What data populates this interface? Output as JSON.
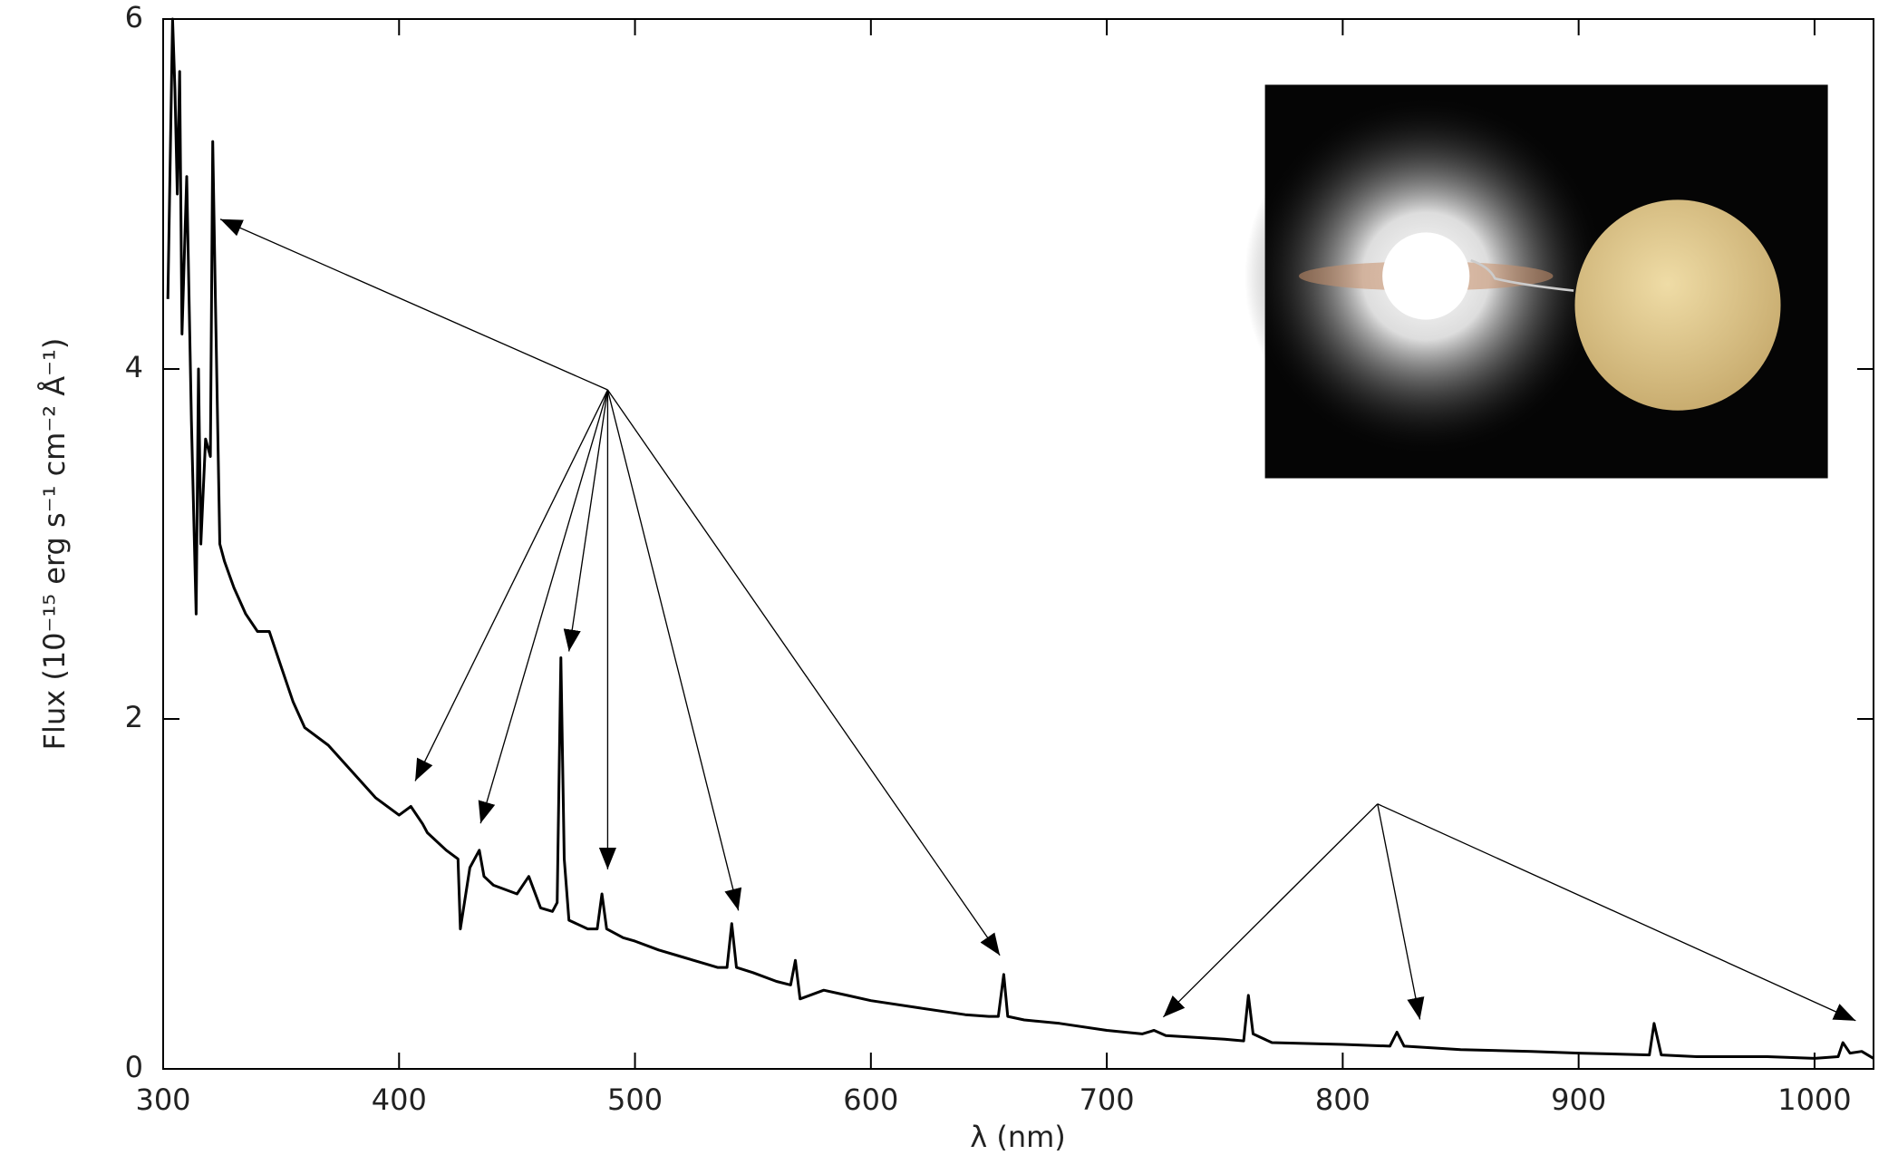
{
  "chart_data": {
    "type": "line",
    "xlabel": "λ (nm)",
    "ylabel": "Flux (10⁻¹⁵ erg s⁻¹ cm⁻² Å⁻¹)",
    "color": "#000000",
    "x": [
      302,
      304,
      305,
      306,
      307,
      308,
      310,
      312,
      314,
      315,
      316,
      318,
      320,
      321,
      322,
      324,
      326,
      330,
      335,
      340,
      345,
      350,
      355,
      360,
      370,
      380,
      390,
      400,
      405,
      410,
      412,
      420,
      425,
      426,
      430,
      434,
      436,
      440,
      450,
      455,
      460,
      465,
      467,
      468.6,
      470,
      472,
      480,
      484,
      486,
      488,
      495,
      500,
      510,
      520,
      530,
      535,
      539,
      541,
      543,
      550,
      560,
      566,
      568,
      570,
      580,
      590,
      600,
      620,
      640,
      650,
      654,
      656.3,
      658,
      665,
      680,
      700,
      715,
      720,
      725,
      750,
      758,
      760,
      762,
      770,
      800,
      820,
      823,
      826,
      850,
      880,
      900,
      930,
      932,
      935,
      950,
      980,
      1000,
      1010,
      1012,
      1015,
      1020,
      1025
    ],
    "values": [
      4.4,
      6.0,
      5.6,
      5.0,
      5.7,
      4.2,
      5.1,
      3.7,
      2.6,
      4.0,
      3.0,
      3.6,
      3.5,
      5.3,
      4.5,
      3.0,
      2.9,
      2.75,
      2.6,
      2.5,
      2.5,
      2.3,
      2.1,
      1.95,
      1.85,
      1.7,
      1.55,
      1.45,
      1.5,
      1.4,
      1.35,
      1.25,
      1.2,
      0.8,
      1.15,
      1.25,
      1.1,
      1.05,
      1.0,
      1.1,
      0.92,
      0.9,
      0.95,
      2.35,
      1.2,
      0.85,
      0.8,
      0.8,
      1.0,
      0.8,
      0.75,
      0.73,
      0.68,
      0.64,
      0.6,
      0.58,
      0.58,
      0.83,
      0.58,
      0.55,
      0.5,
      0.48,
      0.62,
      0.4,
      0.45,
      0.42,
      0.39,
      0.35,
      0.31,
      0.3,
      0.3,
      0.54,
      0.3,
      0.28,
      0.26,
      0.22,
      0.2,
      0.22,
      0.19,
      0.17,
      0.16,
      0.42,
      0.2,
      0.15,
      0.14,
      0.13,
      0.21,
      0.13,
      0.11,
      0.1,
      0.09,
      0.08,
      0.26,
      0.08,
      0.07,
      0.07,
      0.06,
      0.07,
      0.15,
      0.09,
      0.1,
      0.06
    ],
    "xlim": [
      300,
      1025
    ],
    "ylim": [
      0,
      6
    ],
    "xticks": [
      300,
      400,
      500,
      600,
      700,
      800,
      900,
      1000
    ],
    "yticks": [
      0,
      2,
      4,
      6
    ]
  }
}
